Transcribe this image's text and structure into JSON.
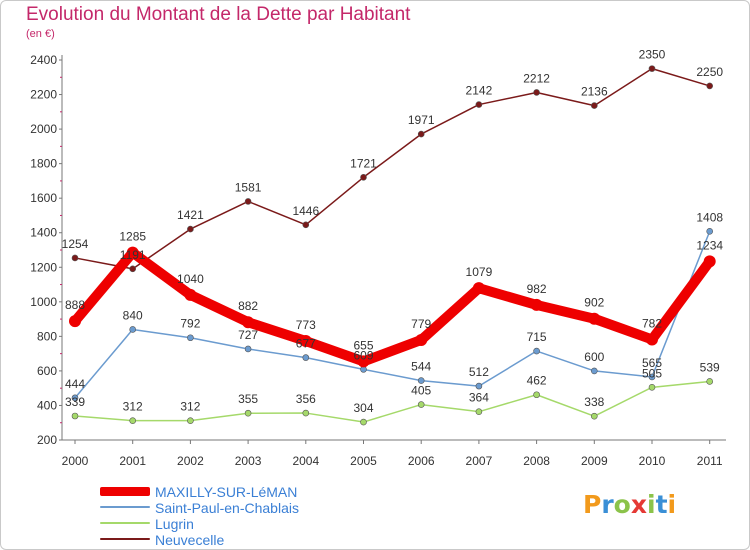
{
  "header": {
    "title": "Evolution du Montant de la Dette par Habitant",
    "subtitle": "(en €)"
  },
  "brand": {
    "letters": [
      "P",
      "r",
      "o",
      "x",
      "i",
      "t",
      "i"
    ],
    "colors": [
      "#f29a1c",
      "#3a8fd6",
      "#8bc34a",
      "#e53935",
      "#8bc34a",
      "#3a8fd6",
      "#f29a1c"
    ]
  },
  "chart_data": {
    "type": "line",
    "title": "Evolution du Montant de la Dette par Habitant",
    "subtitle": "(en €)",
    "x": [
      "2000",
      "2001",
      "2002",
      "2003",
      "2004",
      "2005",
      "2006",
      "2007",
      "2008",
      "2009",
      "2010",
      "2011"
    ],
    "ylim": [
      200,
      2400
    ],
    "yticks": [
      200,
      400,
      600,
      800,
      1000,
      1200,
      1400,
      1600,
      1800,
      2000,
      2200,
      2400
    ],
    "grid": false,
    "legend_position": "bottom-left",
    "series": [
      {
        "name": "MAXILLY-SUR-LéMAN",
        "color": "#ee0000",
        "values": [
          888,
          1285,
          1040,
          882,
          773,
          655,
          779,
          1079,
          982,
          902,
          782,
          1234
        ]
      },
      {
        "name": "Saint-Paul-en-Chablais",
        "color": "#6b9bcf",
        "values": [
          444,
          840,
          792,
          727,
          677,
          609,
          544,
          512,
          715,
          600,
          565,
          1408
        ]
      },
      {
        "name": "Lugrin",
        "color": "#a5d96a",
        "values": [
          339,
          312,
          312,
          355,
          356,
          304,
          405,
          364,
          462,
          338,
          505,
          539
        ]
      },
      {
        "name": "Neuvecelle",
        "color": "#7b1a1a",
        "values": [
          1254,
          1191,
          1421,
          1581,
          1446,
          1721,
          1971,
          2142,
          2212,
          2136,
          2350,
          2250
        ]
      }
    ]
  }
}
